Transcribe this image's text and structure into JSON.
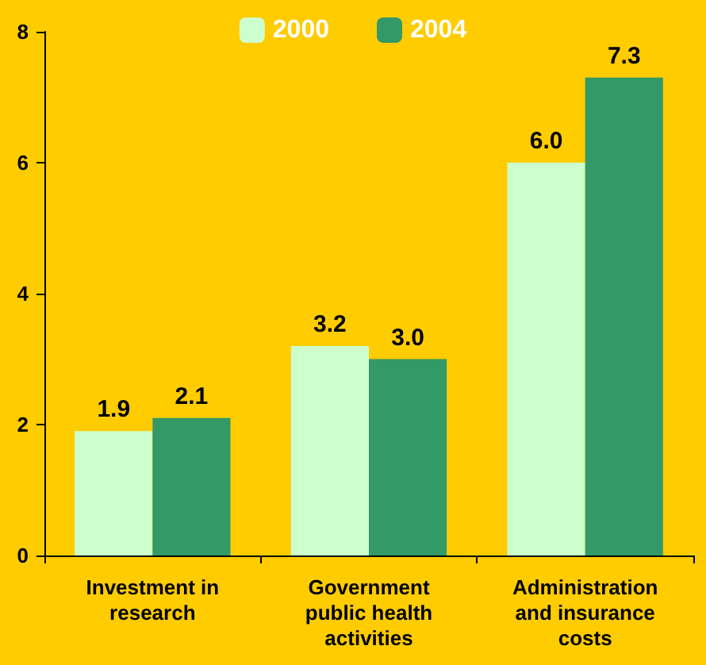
{
  "chart_data": {
    "type": "bar",
    "categories": [
      "Investment in research",
      "Government public health activities",
      "Administration and insurance costs"
    ],
    "series": [
      {
        "name": "2000",
        "color": "#ccffcc",
        "values": [
          1.9,
          3.2,
          6.0
        ],
        "value_labels": [
          "1.9",
          "3.2",
          "6.0"
        ]
      },
      {
        "name": "2004",
        "color": "#339966",
        "values": [
          2.1,
          3.0,
          7.3
        ],
        "value_labels": [
          "2.1",
          "3.0",
          "7.3"
        ]
      }
    ],
    "ylim": [
      0,
      8
    ],
    "yticks": [
      0,
      2,
      4,
      6,
      8
    ],
    "grid": false,
    "legend": "top"
  }
}
